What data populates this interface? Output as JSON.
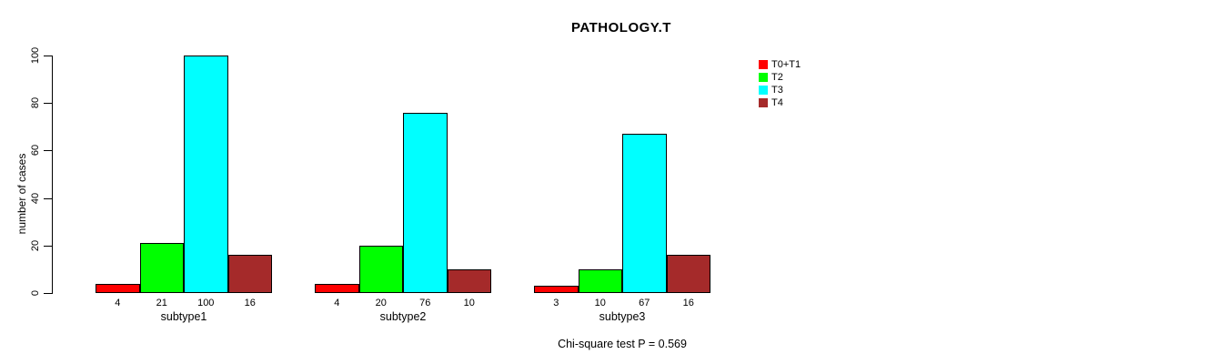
{
  "chart_data": {
    "type": "bar",
    "title": "PATHOLOGY.T",
    "xlabel": "",
    "ylabel": "number of cases",
    "ylim": [
      0,
      100
    ],
    "yticks": [
      0,
      20,
      40,
      60,
      80,
      100
    ],
    "grid": false,
    "legend_position": "top-right",
    "categories": [
      "subtype1",
      "subtype2",
      "subtype3"
    ],
    "series": [
      {
        "name": "T0+T1",
        "color": "#FF0000",
        "values": [
          4,
          4,
          3
        ]
      },
      {
        "name": "T2",
        "color": "#00FF00",
        "values": [
          21,
          20,
          10
        ]
      },
      {
        "name": "T3",
        "color": "#00FFFF",
        "values": [
          100,
          76,
          67
        ]
      },
      {
        "name": "T4",
        "color": "#A52A2A",
        "values": [
          16,
          10,
          16
        ]
      }
    ],
    "bar_value_labels": [
      [
        4,
        21,
        100,
        16
      ],
      [
        4,
        20,
        76,
        10
      ],
      [
        3,
        10,
        67,
        16
      ]
    ],
    "annotation": "Chi-square test P = 0.569"
  }
}
